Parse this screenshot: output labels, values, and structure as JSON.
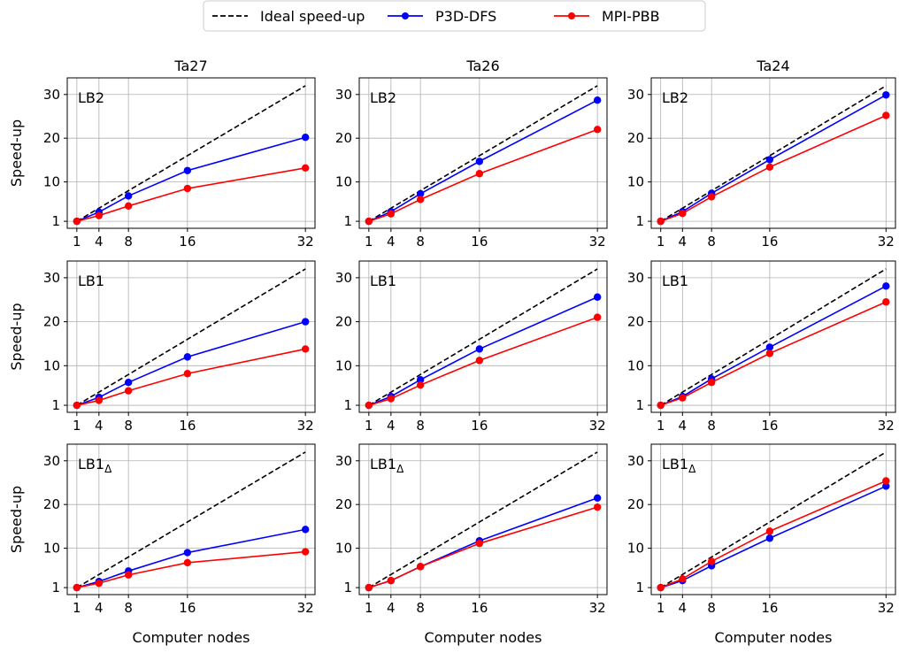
{
  "legend": {
    "items": [
      {
        "label": "Ideal speed-up",
        "color": "#000000",
        "dash": true
      },
      {
        "label": "P3D-DFS",
        "color": "#0000ff",
        "dash": false
      },
      {
        "label": "MPI-PBB",
        "color": "#ff0000",
        "dash": false
      }
    ]
  },
  "shared": {
    "xticks": [
      1,
      4,
      8,
      16,
      32
    ],
    "yticks": [
      1,
      10,
      20,
      30
    ],
    "xlim": [
      -0.3,
      33.3
    ],
    "ylim": [
      -0.6,
      33.8
    ],
    "xlabel": "Computer nodes",
    "ylabel": "Speed-up"
  },
  "chart_data": [
    {
      "type": "line",
      "col_title": "Ta27",
      "label_main": "LB2",
      "label_sub": "",
      "row": 0,
      "col": 0,
      "x": [
        1,
        4,
        8,
        16,
        32
      ],
      "series": [
        {
          "name": "Ideal speed-up",
          "values": [
            1,
            4,
            8,
            16,
            32
          ]
        },
        {
          "name": "P3D-DFS",
          "values": [
            1,
            3.1,
            6.8,
            12.6,
            20.2
          ]
        },
        {
          "name": "MPI-PBB",
          "values": [
            1,
            2.3,
            4.5,
            8.5,
            13.2
          ]
        }
      ]
    },
    {
      "type": "line",
      "col_title": "Ta26",
      "label_main": "LB2",
      "label_sub": "",
      "row": 0,
      "col": 1,
      "x": [
        1,
        4,
        8,
        16,
        32
      ],
      "series": [
        {
          "name": "Ideal speed-up",
          "values": [
            1,
            4,
            8,
            16,
            32
          ]
        },
        {
          "name": "P3D-DFS",
          "values": [
            1,
            3.2,
            7.3,
            14.7,
            28.7
          ]
        },
        {
          "name": "MPI-PBB",
          "values": [
            1,
            2.7,
            6.0,
            11.9,
            22.0
          ]
        }
      ]
    },
    {
      "type": "line",
      "col_title": "Ta24",
      "label_main": "LB2",
      "label_sub": "",
      "row": 0,
      "col": 2,
      "x": [
        1,
        4,
        8,
        16,
        32
      ],
      "series": [
        {
          "name": "Ideal speed-up",
          "values": [
            1,
            4,
            8,
            16,
            32
          ]
        },
        {
          "name": "P3D-DFS",
          "values": [
            1,
            3.2,
            7.4,
            15.1,
            29.9
          ]
        },
        {
          "name": "MPI-PBB",
          "values": [
            1,
            2.8,
            6.6,
            13.4,
            25.2
          ]
        }
      ]
    },
    {
      "type": "line",
      "col_title": "",
      "label_main": "LB1",
      "label_sub": "",
      "row": 1,
      "col": 0,
      "x": [
        1,
        4,
        8,
        16,
        32
      ],
      "series": [
        {
          "name": "Ideal speed-up",
          "values": [
            1,
            4,
            8,
            16,
            32
          ]
        },
        {
          "name": "P3D-DFS",
          "values": [
            1,
            2.8,
            6.2,
            12.0,
            20.0
          ]
        },
        {
          "name": "MPI-PBB",
          "values": [
            1,
            2.1,
            4.3,
            8.2,
            13.8
          ]
        }
      ]
    },
    {
      "type": "line",
      "col_title": "",
      "label_main": "LB1",
      "label_sub": "",
      "row": 1,
      "col": 1,
      "x": [
        1,
        4,
        8,
        16,
        32
      ],
      "series": [
        {
          "name": "Ideal speed-up",
          "values": [
            1,
            4,
            8,
            16,
            32
          ]
        },
        {
          "name": "P3D-DFS",
          "values": [
            1,
            3.0,
            6.8,
            13.8,
            25.6
          ]
        },
        {
          "name": "MPI-PBB",
          "values": [
            1,
            2.5,
            5.6,
            11.2,
            21.0
          ]
        }
      ]
    },
    {
      "type": "line",
      "col_title": "",
      "label_main": "LB1",
      "label_sub": "",
      "row": 1,
      "col": 2,
      "x": [
        1,
        4,
        8,
        16,
        32
      ],
      "series": [
        {
          "name": "Ideal speed-up",
          "values": [
            1,
            4,
            8,
            16,
            32
          ]
        },
        {
          "name": "P3D-DFS",
          "values": [
            1,
            3.0,
            7.0,
            14.2,
            28.1
          ]
        },
        {
          "name": "MPI-PBB",
          "values": [
            1,
            2.7,
            6.2,
            12.8,
            24.5
          ]
        }
      ]
    },
    {
      "type": "line",
      "col_title": "",
      "label_main": "LB1",
      "label_sub": "Δ",
      "row": 2,
      "col": 0,
      "x": [
        1,
        4,
        8,
        16,
        32
      ],
      "series": [
        {
          "name": "Ideal speed-up",
          "values": [
            1,
            4,
            8,
            16,
            32
          ]
        },
        {
          "name": "P3D-DFS",
          "values": [
            1,
            2.4,
            4.8,
            9.0,
            14.3
          ]
        },
        {
          "name": "MPI-PBB",
          "values": [
            1,
            2.0,
            3.9,
            6.7,
            9.2
          ]
        }
      ]
    },
    {
      "type": "line",
      "col_title": "",
      "label_main": "LB1",
      "label_sub": "Δ",
      "row": 2,
      "col": 1,
      "x": [
        1,
        4,
        8,
        16,
        32
      ],
      "series": [
        {
          "name": "Ideal speed-up",
          "values": [
            1,
            4,
            8,
            16,
            32
          ]
        },
        {
          "name": "P3D-DFS",
          "values": [
            1,
            2.6,
            5.8,
            11.7,
            21.5
          ]
        },
        {
          "name": "MPI-PBB",
          "values": [
            1,
            2.6,
            5.8,
            11.1,
            19.4
          ]
        }
      ]
    },
    {
      "type": "line",
      "col_title": "",
      "label_main": "LB1",
      "label_sub": "Δ",
      "row": 2,
      "col": 2,
      "x": [
        1,
        4,
        8,
        16,
        32
      ],
      "series": [
        {
          "name": "Ideal speed-up",
          "values": [
            1,
            4,
            8,
            16,
            32
          ]
        },
        {
          "name": "P3D-DFS",
          "values": [
            1,
            2.6,
            6.0,
            12.3,
            24.2
          ]
        },
        {
          "name": "MPI-PBB",
          "values": [
            1,
            3.0,
            7.0,
            13.9,
            25.4
          ]
        }
      ]
    }
  ]
}
